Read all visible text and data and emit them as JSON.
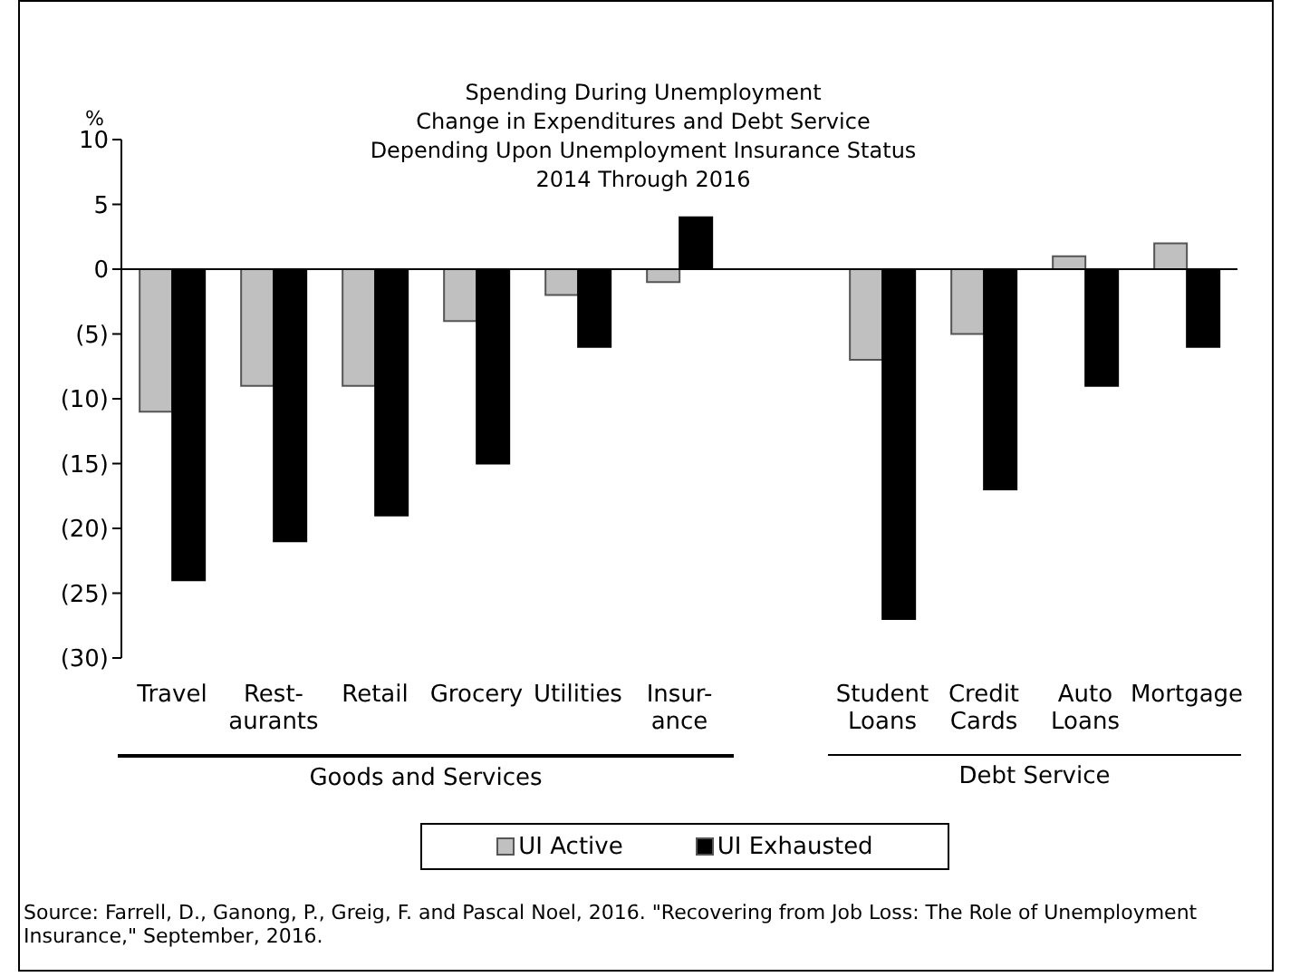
{
  "chart_data": {
    "type": "bar",
    "title": "Spending During Unemployment",
    "subtitle": "Change in Expenditures and Debt Service\nDepending Upon Unemployment Insurance Status\n2014 Through 2016",
    "ylabel": "%",
    "categories": [
      "Travel",
      "Rest-\naurants",
      "Retail",
      "Grocery",
      "Utilities",
      "Insur-\nance",
      null,
      "Student\nLoans",
      "Credit\nCards",
      "Auto\nLoans",
      "Mortgage"
    ],
    "series": [
      {
        "name": "UI Active",
        "color": "#c0c0c0",
        "values": [
          -11,
          -9,
          -9,
          -4,
          -2,
          -1,
          null,
          -7,
          -5,
          1,
          2
        ]
      },
      {
        "name": "UI Exhausted",
        "color": "#000000",
        "values": [
          -24,
          -21,
          -19,
          -15,
          -6,
          4,
          null,
          -27,
          -17,
          -9,
          -6
        ]
      }
    ],
    "ylim": [
      -30,
      10
    ],
    "yticks": [
      {
        "value": -30,
        "label": "(30)"
      },
      {
        "value": -25,
        "label": "(25)"
      },
      {
        "value": -20,
        "label": "(20)"
      },
      {
        "value": -15,
        "label": "(15)"
      },
      {
        "value": -10,
        "label": "(10)"
      },
      {
        "value": -5,
        "label": "(5)"
      },
      0,
      5,
      10
    ],
    "legend": "bottom",
    "annotations": [
      "Goods and Services",
      "Debt Service",
      "Source: Farrell, D., Ganong, P., Greig, F. and Pascal Noel, 2016. \"Recovering from Job Loss: The Role of Unemployment Insurance,\" September, 2016."
    ]
  }
}
